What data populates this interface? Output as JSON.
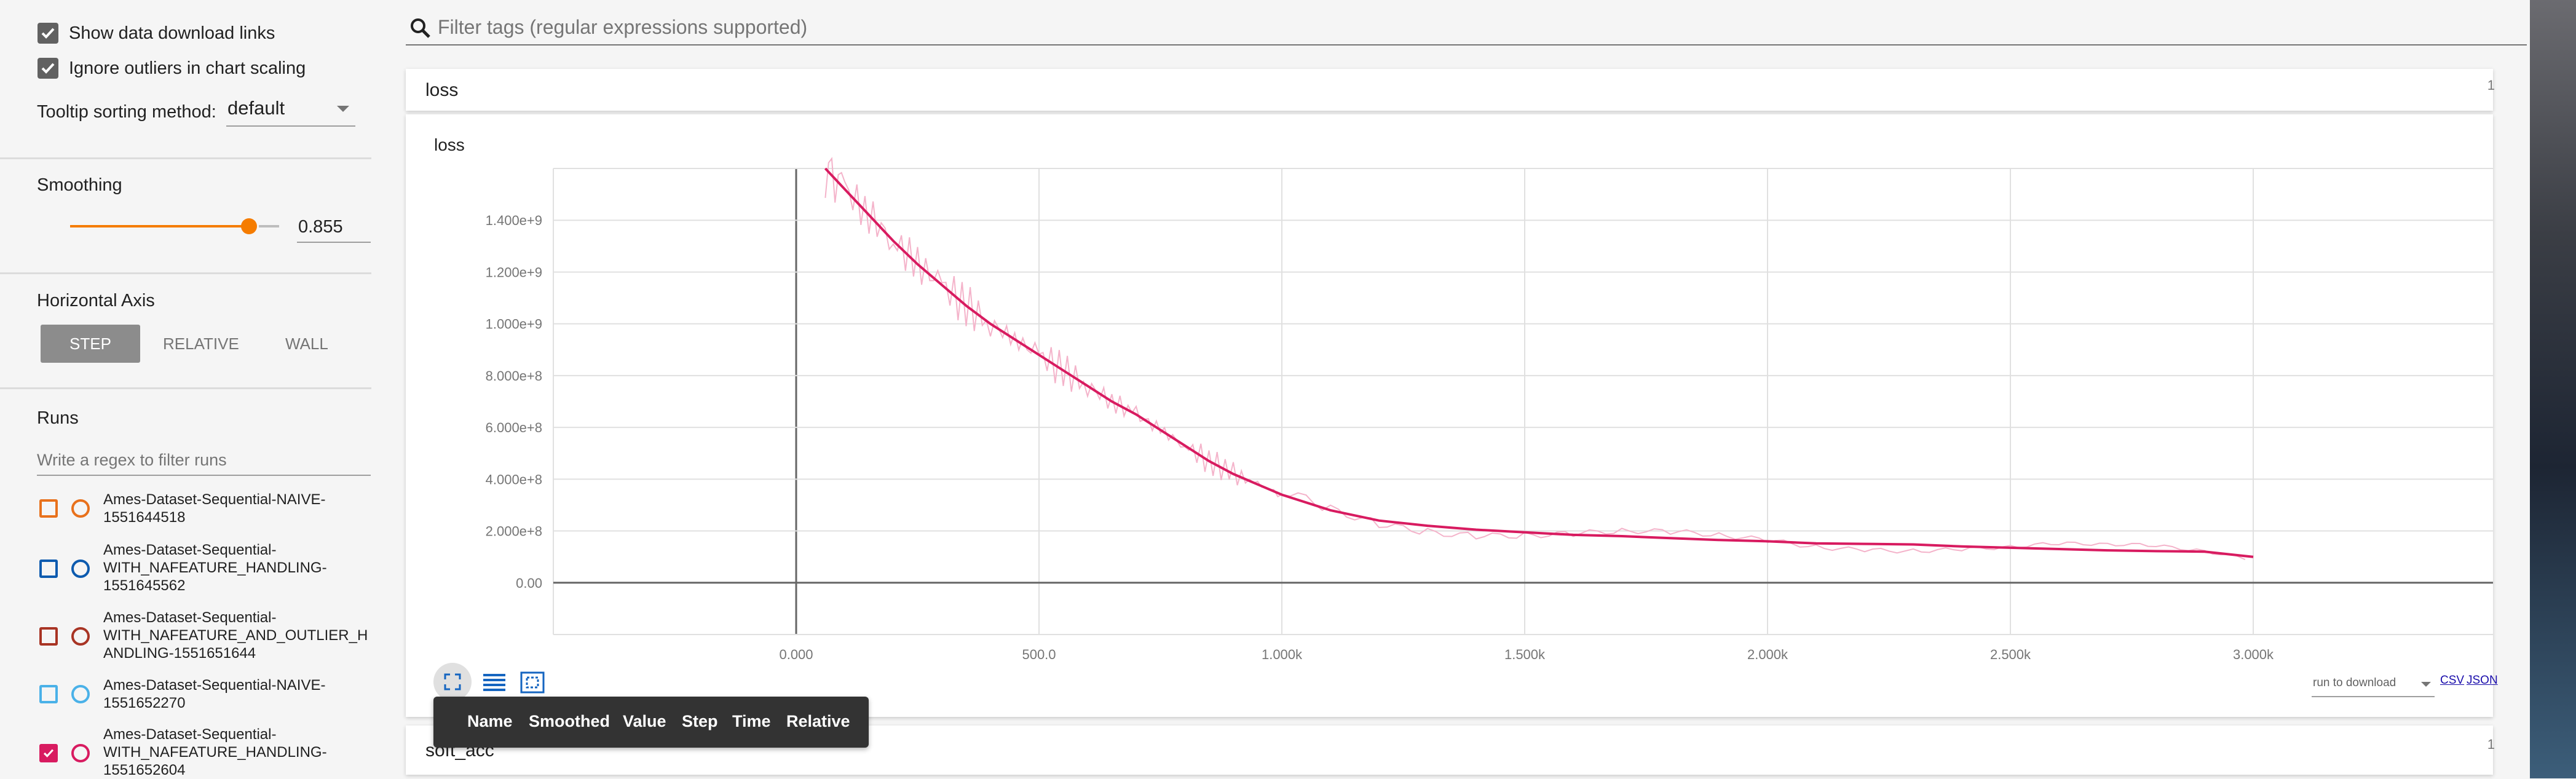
{
  "settings": {
    "show_download_links": {
      "label": "Show data download links",
      "checked": true
    },
    "ignore_outliers": {
      "label": "Ignore outliers in chart scaling",
      "checked": true
    },
    "tooltip_sorting": {
      "label": "Tooltip sorting method:",
      "value": "default"
    }
  },
  "smoothing": {
    "title": "Smoothing",
    "value": "0.855",
    "level": 0.855
  },
  "horizontal_axis": {
    "title": "Horizontal Axis",
    "options": [
      "STEP",
      "RELATIVE",
      "WALL"
    ],
    "selected": "STEP"
  },
  "runs": {
    "title": "Runs",
    "filter_placeholder": "Write a regex to filter runs",
    "items": [
      {
        "lines": [
          "Ames-Dataset-Sequential-NAIVE-",
          "1551644518"
        ],
        "color": "#e8711c",
        "checked": false
      },
      {
        "lines": [
          "Ames-Dataset-Sequential-",
          "WITH_NAFEATURE_HANDLING-",
          "1551645562"
        ],
        "color": "#0d5baf",
        "checked": false
      },
      {
        "lines": [
          "Ames-Dataset-Sequential-",
          "WITH_NAFEATURE_AND_OUTLIER_H",
          "ANDLING-1551651644"
        ],
        "color": "#a83424",
        "checked": false
      },
      {
        "lines": [
          "Ames-Dataset-Sequential-NAIVE-",
          "1551652270"
        ],
        "color": "#4ab1e8",
        "checked": false
      },
      {
        "lines": [
          "Ames-Dataset-Sequential-",
          "WITH_NAFEATURE_HANDLING-",
          "1551652604"
        ],
        "color": "#d81b60",
        "checked": true
      }
    ]
  },
  "search": {
    "placeholder": "Filter tags (regular expressions supported)"
  },
  "cards": [
    {
      "title": "loss",
      "count": "1"
    },
    {
      "title": "soft_acc",
      "count": "1"
    }
  ],
  "chart_panel": {
    "title": "loss",
    "download": {
      "select": "run to download",
      "csv": "CSV",
      "json": "JSON"
    },
    "tooltip_columns": [
      "Name",
      "Smoothed",
      "Value",
      "Step",
      "Time",
      "Relative"
    ]
  },
  "colors": {
    "accent": "#f57c00",
    "series": "#d81b60",
    "series_raw": "#f4b3ca"
  },
  "icons": [
    "search-icon",
    "expand-icon",
    "list-icon",
    "fit-domain-icon",
    "dropdown-arrow-icon",
    "checkmark-icon"
  ],
  "chart_data": {
    "type": "line",
    "title": "loss",
    "xlabel": "",
    "ylabel": "",
    "x_ticks": [
      "0.000",
      "500.0",
      "1.000k",
      "1.500k",
      "2.000k",
      "2.500k",
      "3.000k"
    ],
    "y_ticks": [
      "0.00",
      "2.000e+8",
      "4.000e+8",
      "6.000e+8",
      "8.000e+8",
      "1.000e+9",
      "1.200e+9",
      "1.400e+9"
    ],
    "xlim": [
      -500,
      3500
    ],
    "ylim": [
      -200000000,
      1600000000
    ],
    "grid": true,
    "series": [
      {
        "x": [
          60,
          100,
          150,
          200,
          250,
          300,
          350,
          400,
          450,
          500,
          550,
          600,
          650,
          700,
          750,
          800,
          850,
          900,
          950,
          1000,
          1100,
          1200,
          1300,
          1400,
          1500,
          1600,
          1700,
          1800,
          1900,
          2000,
          2100,
          2200,
          2300,
          2400,
          2500,
          2600,
          2700,
          2800,
          2900,
          3000
        ],
        "values": [
          1600000000,
          1520000000,
          1420000000,
          1320000000,
          1230000000,
          1150000000,
          1070000000,
          1000000000,
          940000000,
          880000000,
          820000000,
          760000000,
          700000000,
          650000000,
          590000000,
          530000000,
          470000000,
          420000000,
          380000000,
          340000000,
          280000000,
          240000000,
          220000000,
          205000000,
          195000000,
          185000000,
          180000000,
          172000000,
          165000000,
          160000000,
          152000000,
          150000000,
          148000000,
          140000000,
          135000000,
          130000000,
          125000000,
          122000000,
          120000000,
          100000000
        ]
      }
    ]
  }
}
